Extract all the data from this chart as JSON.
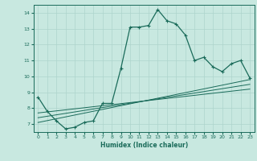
{
  "xlabel": "Humidex (Indice chaleur)",
  "ylabel": "",
  "background_color": "#c8e8e0",
  "grid_color": "#aed4cc",
  "line_color": "#1a6b5a",
  "xlim": [
    -0.5,
    23.5
  ],
  "ylim": [
    6.5,
    14.5
  ],
  "xticks": [
    0,
    1,
    2,
    3,
    4,
    5,
    6,
    7,
    8,
    9,
    10,
    11,
    12,
    13,
    14,
    15,
    16,
    17,
    18,
    19,
    20,
    21,
    22,
    23
  ],
  "yticks": [
    7,
    8,
    9,
    10,
    11,
    12,
    13,
    14
  ],
  "curve1_x": [
    0,
    1,
    2,
    3,
    4,
    5,
    6,
    7,
    8,
    9,
    10,
    11,
    12,
    13,
    14,
    15,
    16,
    17,
    18,
    19,
    20,
    21,
    22,
    23
  ],
  "curve1_y": [
    8.7,
    7.8,
    7.2,
    6.7,
    6.8,
    7.1,
    7.2,
    8.3,
    8.3,
    10.5,
    13.1,
    13.1,
    13.2,
    14.2,
    13.5,
    13.3,
    12.6,
    11.0,
    11.2,
    10.6,
    10.3,
    10.8,
    11.0,
    9.9
  ],
  "line1_x": [
    0,
    23
  ],
  "line1_y": [
    7.1,
    9.8
  ],
  "line2_x": [
    0,
    23
  ],
  "line2_y": [
    7.4,
    9.5
  ],
  "line3_x": [
    0,
    23
  ],
  "line3_y": [
    7.7,
    9.2
  ]
}
